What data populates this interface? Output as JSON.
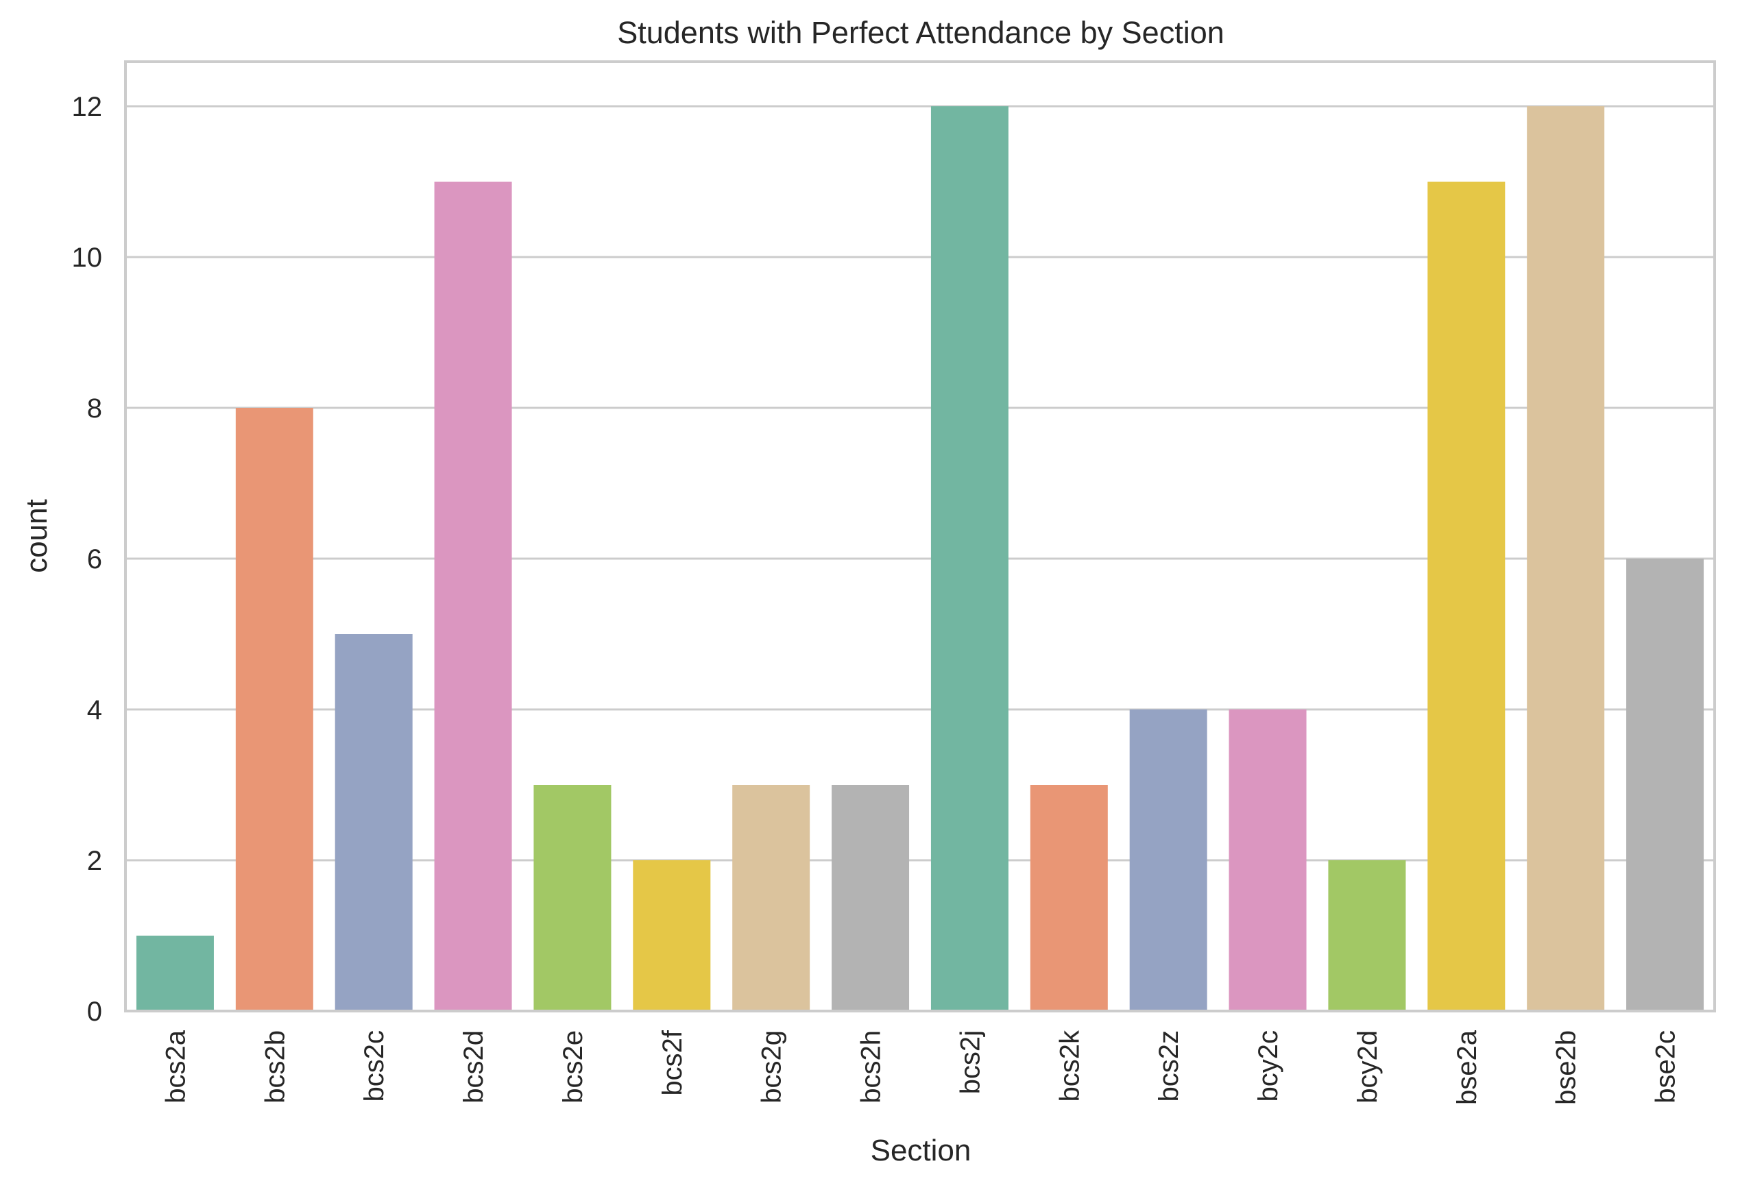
{
  "chart_data": {
    "type": "bar",
    "title": "Students with Perfect Attendance by Section",
    "xlabel": "Section",
    "ylabel": "count",
    "categories": [
      "bcs2a",
      "bcs2b",
      "bcs2c",
      "bcs2d",
      "bcs2e",
      "bcs2f",
      "bcs2g",
      "bcs2h",
      "bcs2j",
      "bcs2k",
      "bcs2z",
      "bcy2c",
      "bcy2d",
      "bse2a",
      "bse2b",
      "bse2c"
    ],
    "values": [
      1,
      8,
      5,
      11,
      3,
      2,
      3,
      3,
      12,
      3,
      4,
      4,
      2,
      11,
      12,
      6
    ],
    "colors": [
      "#72b6a1",
      "#e99675",
      "#95a3c3",
      "#db96c0",
      "#a2c865",
      "#e5c747",
      "#dbc39d",
      "#b3b3b3",
      "#72b6a1",
      "#e99675",
      "#95a3c3",
      "#db96c0",
      "#a2c865",
      "#e5c747",
      "#dbc39d",
      "#b3b3b3"
    ],
    "yticks": [
      0,
      2,
      4,
      6,
      8,
      10,
      12
    ],
    "ylim": [
      0,
      12.6
    ],
    "grid": true,
    "legend": "none"
  }
}
